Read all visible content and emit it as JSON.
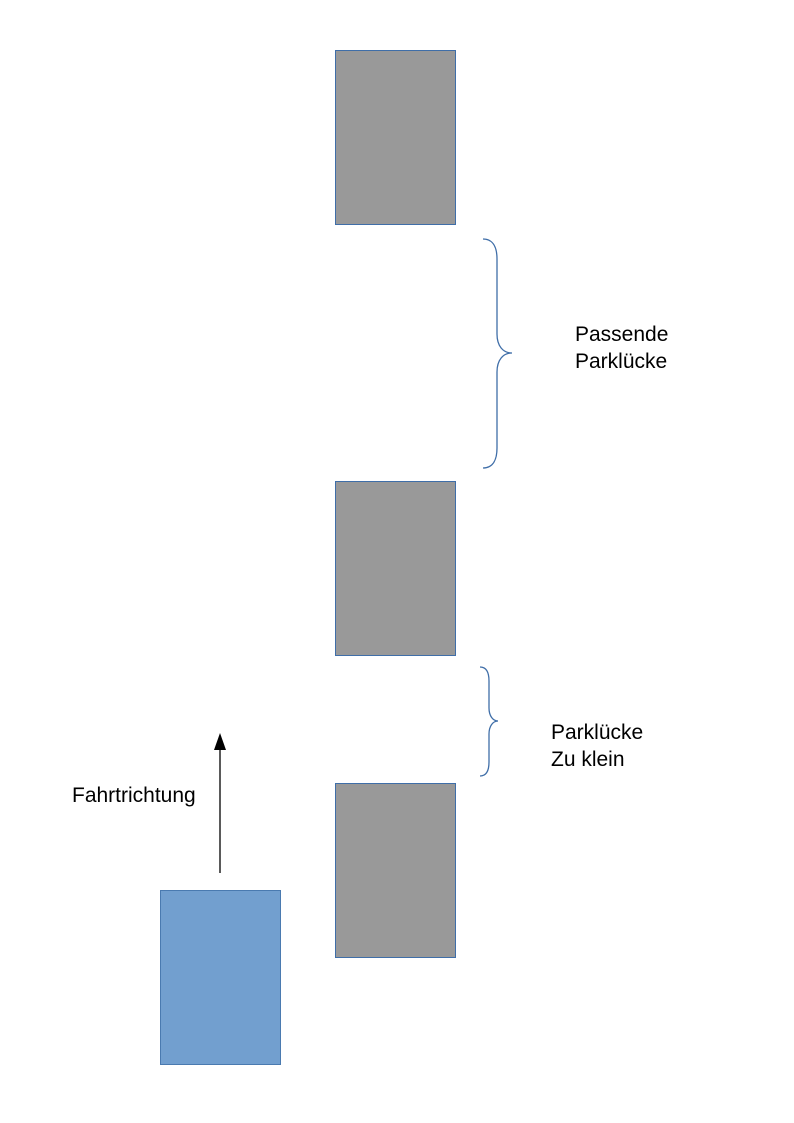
{
  "labels": {
    "gap_fits": [
      "Passende",
      "Parklücke"
    ],
    "gap_too_small": [
      "Parklücke",
      "Zu klein"
    ],
    "direction": "Fahrtrichtung"
  },
  "colors": {
    "parked_car": "#999999",
    "own_car": "#729fcf",
    "car_outline": "#3f6ea8",
    "brace": "#3f6ea8",
    "arrow": "#000000"
  },
  "icons": {
    "direction_arrow": "arrow-up-icon",
    "gap_brace": "right-curly-brace-icon"
  }
}
